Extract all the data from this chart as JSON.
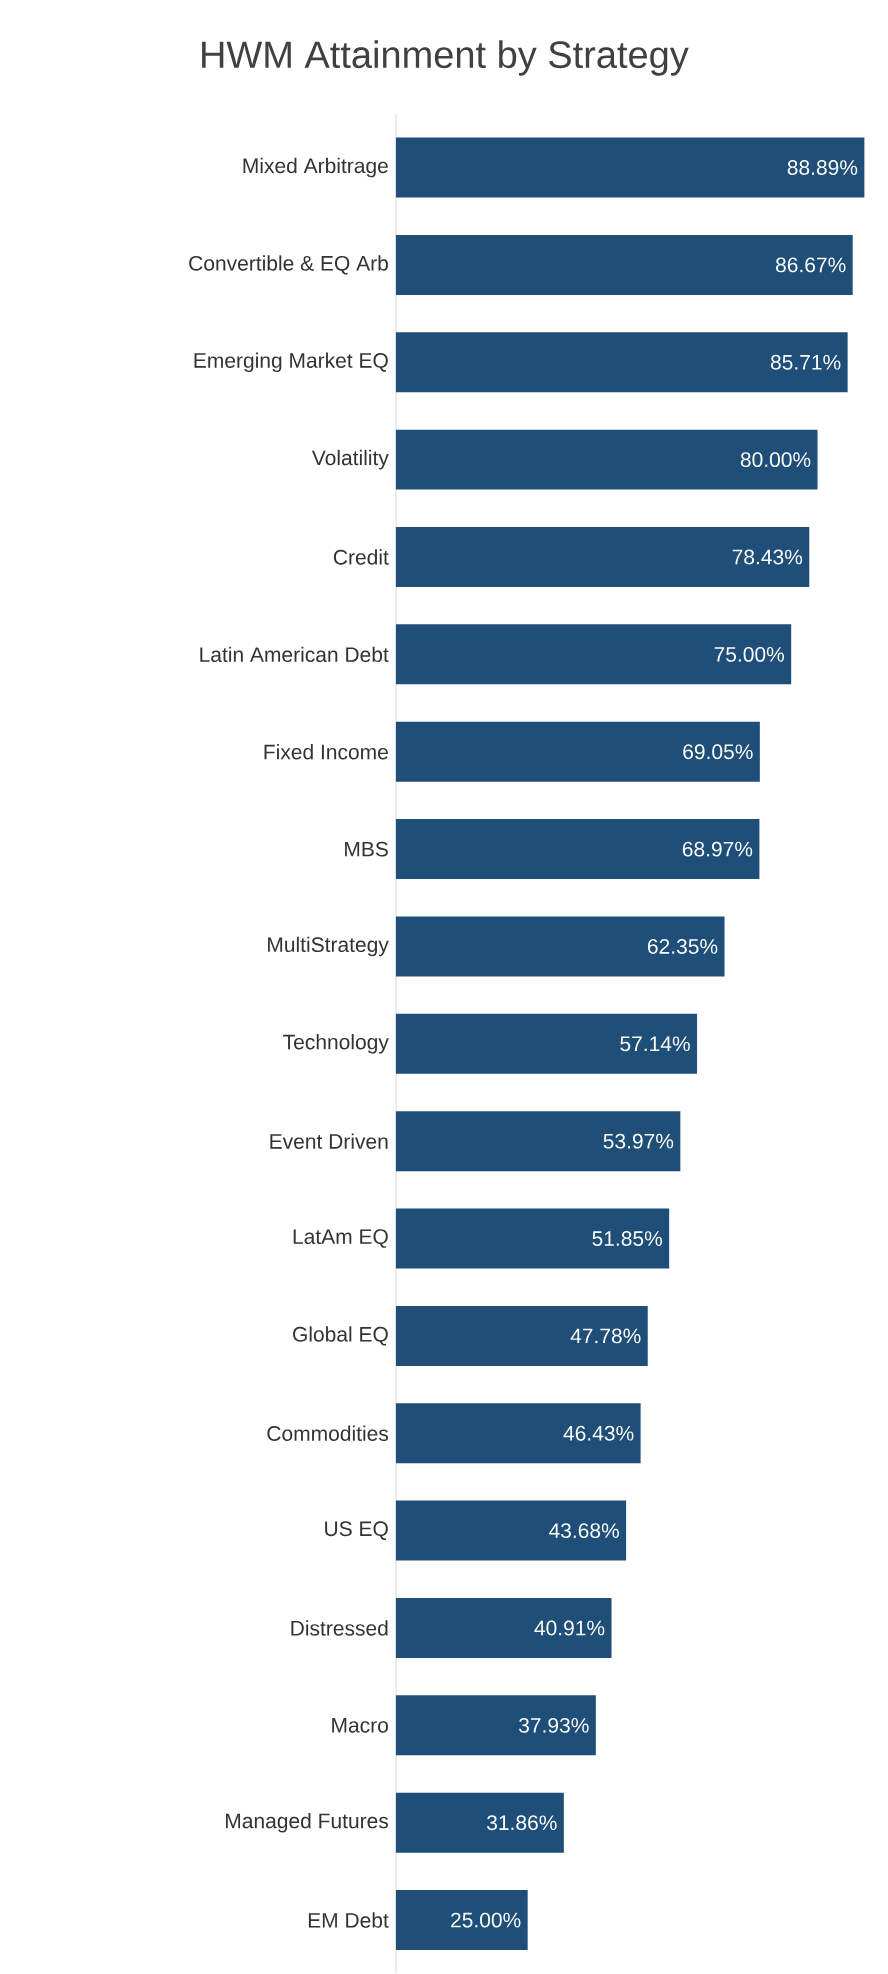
{
  "chart_data": {
    "type": "bar",
    "orientation": "horizontal",
    "title": "HWM Attainment by Strategy",
    "color": "#1f4e79",
    "categories": [
      "Mixed Arbitrage",
      "Convertible & EQ Arb",
      "Emerging Market EQ",
      "Volatility",
      "Credit",
      "Latin American Debt",
      "Fixed Income",
      "MBS",
      "MultiStrategy",
      "Technology",
      "Event Driven",
      "LatAm EQ",
      "Global EQ",
      "Commodities",
      "US EQ",
      "Distressed",
      "Macro",
      "Managed Futures",
      "EM Debt"
    ],
    "values": [
      88.89,
      86.67,
      85.71,
      80.0,
      78.43,
      75.0,
      69.05,
      68.97,
      62.35,
      57.14,
      53.97,
      51.85,
      47.78,
      46.43,
      43.68,
      40.91,
      37.93,
      31.86,
      25.0
    ],
    "value_labels": [
      "88.89%",
      "86.67%",
      "85.71%",
      "80.00%",
      "78.43%",
      "75.00%",
      "69.05%",
      "68.97%",
      "62.35%",
      "57.14%",
      "53.97%",
      "51.85%",
      "47.78%",
      "46.43%",
      "43.68%",
      "40.91%",
      "37.93%",
      "31.86%",
      "25.00%"
    ],
    "data_labels": false
  }
}
